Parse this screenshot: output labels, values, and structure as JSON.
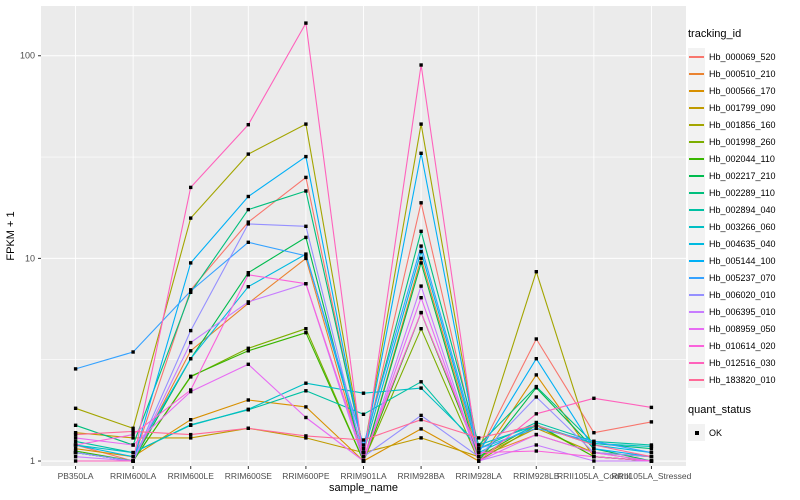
{
  "panel": {
    "bg": "#EBEBEB",
    "grid_color": "#FFFFFF",
    "axis_text_color": "#4D4D4D",
    "tick_color": "#333333",
    "point_color": "#000000"
  },
  "chart_data": {
    "type": "line",
    "title": "",
    "xlabel": "sample_name",
    "ylabel": "FPKM + 1",
    "y_scale": "log10",
    "y_ticks": [
      1,
      10,
      100
    ],
    "y_tick_labels": [
      "1",
      "10",
      "100"
    ],
    "y_minor": [
      3.162,
      31.62
    ],
    "ylim": [
      0.945,
      176
    ],
    "legend_position": "right",
    "grid": "on",
    "categories": [
      "PB350LA",
      "RRIM600LA",
      "RRIM600LE",
      "RRIM600SE",
      "RRIM600PE",
      "RRIM901LA",
      "RRIM928BA",
      "RRIM928LA",
      "RRIM928LB",
      "RRII105LA_Control",
      "RRII105LA_Stressed"
    ],
    "series": [
      {
        "name": "Hb_000069_520",
        "color": "#F8766D",
        "values": [
          1.2,
          1.0,
          7.0,
          15.1,
          25.1,
          1.1,
          18.8,
          1.1,
          4.0,
          1.38,
          1.56
        ]
      },
      {
        "name": "Hb_000510_210",
        "color": "#EA8331",
        "values": [
          1.1,
          1.0,
          3.5,
          6.0,
          10.0,
          1.0,
          10.0,
          1.05,
          1.35,
          1.1,
          1.0
        ]
      },
      {
        "name": "Hb_000566_170",
        "color": "#D89000",
        "values": [
          1.15,
          1.05,
          1.6,
          2.0,
          1.85,
          1.0,
          1.44,
          1.0,
          2.66,
          1.05,
          1.0
        ]
      },
      {
        "name": "Hb_001799_090",
        "color": "#C09B00",
        "values": [
          1.38,
          1.3,
          1.3,
          1.45,
          1.3,
          1.1,
          1.3,
          1.05,
          1.45,
          1.1,
          1.05
        ]
      },
      {
        "name": "Hb_001856_160",
        "color": "#A3A500",
        "values": [
          1.82,
          1.45,
          15.8,
          32.7,
          46.0,
          1.1,
          46.0,
          1.1,
          8.6,
          1.1,
          1.05
        ]
      },
      {
        "name": "Hb_001998_260",
        "color": "#7CAE00",
        "values": [
          1.1,
          1.0,
          2.6,
          3.6,
          4.5,
          1.0,
          4.5,
          1.0,
          1.5,
          1.05,
          1.0
        ]
      },
      {
        "name": "Hb_002044_110",
        "color": "#39B600",
        "values": [
          1.12,
          1.0,
          2.62,
          3.5,
          4.3,
          1.0,
          5.4,
          1.05,
          1.52,
          1.05,
          1.0
        ]
      },
      {
        "name": "Hb_002217_210",
        "color": "#00BB4E",
        "values": [
          1.1,
          1.0,
          3.2,
          8.5,
          12.7,
          1.0,
          9.5,
          1.0,
          2.3,
          1.15,
          1.0
        ]
      },
      {
        "name": "Hb_002289_110",
        "color": "#00BF7D",
        "values": [
          1.5,
          1.2,
          6.8,
          17.4,
          21.5,
          1.15,
          13.6,
          1.2,
          2.33,
          1.22,
          1.15
        ]
      },
      {
        "name": "Hb_002894_040",
        "color": "#00C1A3",
        "values": [
          1.25,
          1.1,
          1.51,
          1.79,
          2.22,
          1.7,
          2.46,
          1.15,
          1.55,
          1.25,
          1.2
        ]
      },
      {
        "name": "Hb_003266_060",
        "color": "#00BFC4",
        "values": [
          1.2,
          1.1,
          1.5,
          1.8,
          2.42,
          2.16,
          2.29,
          1.2,
          1.5,
          1.22,
          1.18
        ]
      },
      {
        "name": "Hb_004635_040",
        "color": "#00BAE0",
        "values": [
          1.2,
          1.05,
          3.2,
          7.25,
          10.5,
          1.1,
          10.8,
          1.1,
          1.5,
          1.2,
          1.1
        ]
      },
      {
        "name": "Hb_005144_100",
        "color": "#00B0F6",
        "values": [
          1.1,
          1.0,
          9.5,
          20.2,
          31.8,
          1.1,
          33.0,
          1.1,
          3.2,
          1.15,
          1.05
        ]
      },
      {
        "name": "Hb_005237_070",
        "color": "#35A2FF",
        "values": [
          2.85,
          3.45,
          6.9,
          12.0,
          10.3,
          1.2,
          11.5,
          1.15,
          1.45,
          1.25,
          1.1
        ]
      },
      {
        "name": "Hb_006020_010",
        "color": "#9590FF",
        "values": [
          1.1,
          1.0,
          4.4,
          14.8,
          14.4,
          1.05,
          1.68,
          1.05,
          2.07,
          1.1,
          1.05
        ]
      },
      {
        "name": "Hb_006395_010",
        "color": "#C77CFF",
        "values": [
          1.05,
          1.0,
          3.84,
          6.1,
          7.5,
          1.0,
          7.3,
          1.0,
          1.2,
          1.0,
          1.0
        ]
      },
      {
        "name": "Hb_008959_050",
        "color": "#E76BF3",
        "values": [
          1.3,
          1.2,
          2.2,
          3.0,
          1.64,
          1.0,
          6.4,
          1.0,
          1.35,
          1.1,
          1.0
        ]
      },
      {
        "name": "Hb_010614_020",
        "color": "#FA62DB",
        "values": [
          1.2,
          1.35,
          2.24,
          8.3,
          7.5,
          1.05,
          5.4,
          1.1,
          1.12,
          1.05,
          1.0
        ]
      },
      {
        "name": "Hb_012516_030",
        "color": "#FF62BC",
        "values": [
          1.0,
          1.0,
          22.4,
          45.7,
          145.0,
          1.0,
          90.0,
          1.0,
          1.71,
          2.04,
          1.84
        ]
      },
      {
        "name": "Hb_183820_010",
        "color": "#FF6A98",
        "values": [
          1.35,
          1.4,
          1.35,
          1.45,
          1.33,
          1.27,
          1.6,
          1.3,
          1.5,
          1.2,
          1.05
        ]
      }
    ],
    "legend": {
      "color_title": "tracking_id",
      "shape_title": "quant_status",
      "shape_items": [
        {
          "label": "OK",
          "marker": "square",
          "color": "#000000"
        }
      ]
    }
  }
}
